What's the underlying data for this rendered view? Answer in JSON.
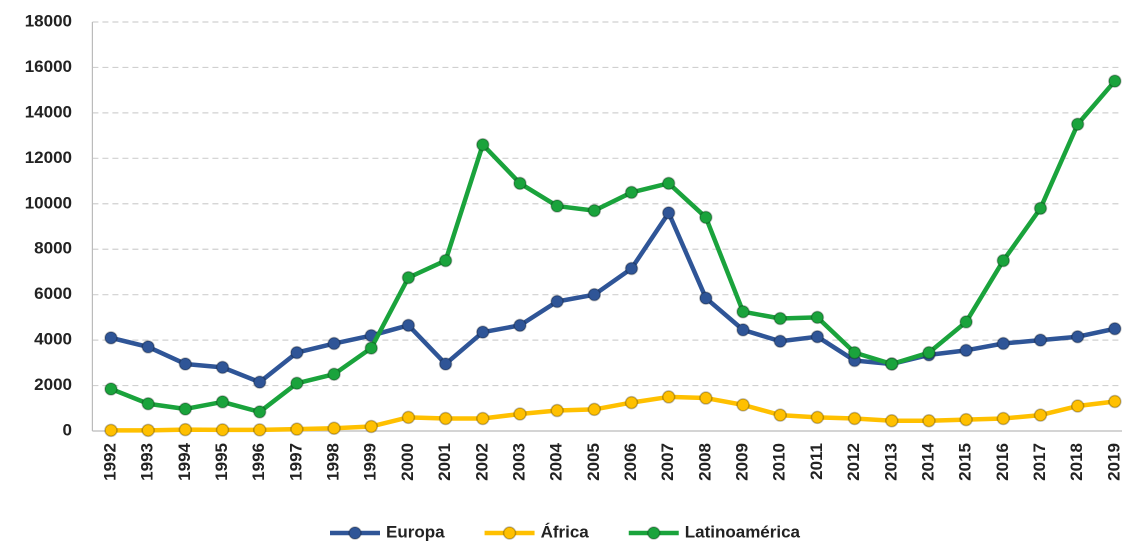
{
  "chart_data": {
    "type": "line",
    "categories": [
      "1992",
      "1993",
      "1994",
      "1995",
      "1996",
      "1997",
      "1998",
      "1999",
      "2000",
      "2001",
      "2002",
      "2003",
      "2004",
      "2005",
      "2006",
      "2007",
      "2008",
      "2009",
      "2010",
      "2011",
      "2012",
      "2013",
      "2014",
      "2015",
      "2016",
      "2017",
      "2018",
      "2019"
    ],
    "series": [
      {
        "name": "Europa",
        "color": "#2f5597",
        "values": [
          4100,
          3700,
          2950,
          2800,
          2150,
          3450,
          3850,
          4200,
          4650,
          2950,
          4350,
          4650,
          5700,
          6000,
          7150,
          9600,
          5850,
          4450,
          3950,
          4150,
          3100,
          2950,
          3350,
          3550,
          3850,
          4000,
          4150,
          4500
        ]
      },
      {
        "name": "África",
        "color": "#ffc000",
        "values": [
          30,
          30,
          60,
          50,
          50,
          80,
          120,
          200,
          600,
          550,
          550,
          750,
          900,
          950,
          1250,
          1500,
          1450,
          1150,
          700,
          600,
          550,
          450,
          450,
          500,
          550,
          700,
          1100,
          1300
        ]
      },
      {
        "name": "Latinoamérica",
        "color": "#1aa33c",
        "values": [
          1850,
          1200,
          970,
          1280,
          840,
          2100,
          2500,
          3650,
          6750,
          7500,
          12600,
          10900,
          9900,
          9700,
          10500,
          10900,
          9400,
          5250,
          4950,
          5000,
          3450,
          2950,
          3450,
          4800,
          7500,
          9800,
          13500,
          15400
        ]
      }
    ],
    "ylim": [
      0,
      18000
    ],
    "yticks": [
      0,
      2000,
      4000,
      6000,
      8000,
      10000,
      12000,
      14000,
      16000,
      18000
    ],
    "grid": true,
    "legend": "bottom"
  }
}
